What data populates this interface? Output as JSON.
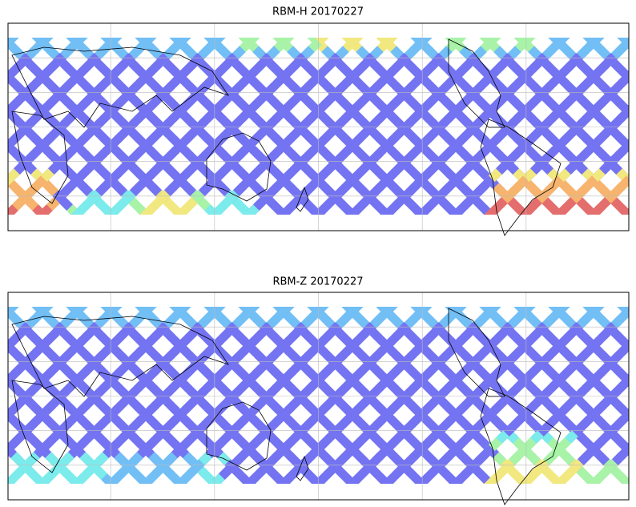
{
  "maps": [
    {
      "title": "RBM-H 20170227"
    },
    {
      "title": "RBM-Z 20170227"
    }
  ]
}
